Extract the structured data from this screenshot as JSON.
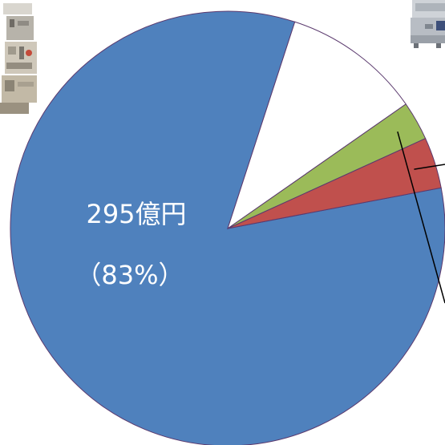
{
  "chart_data": {
    "type": "pie",
    "title": "",
    "start_angle_deg": -10.8,
    "direction": "clockwise",
    "slices": [
      {
        "name": "",
        "value": 83,
        "color": "#4f81bd",
        "label": "295億円",
        "sublabel": "（83%）"
      },
      {
        "name": "",
        "value": 10.3,
        "color": "#ffffff",
        "label": "",
        "sublabel": ""
      },
      {
        "name": "",
        "value": 2.9,
        "color": "#9bbb59",
        "label": "",
        "sublabel": ""
      },
      {
        "name": "",
        "value": 3.8,
        "color": "#c0504d",
        "label": "",
        "sublabel": ""
      }
    ],
    "label_color": "#ffffff",
    "outline_color": "#5b3a6e"
  },
  "photos": [
    {
      "name": "machine-photo-left",
      "description": ""
    },
    {
      "name": "machine-photo-right",
      "description": ""
    }
  ]
}
